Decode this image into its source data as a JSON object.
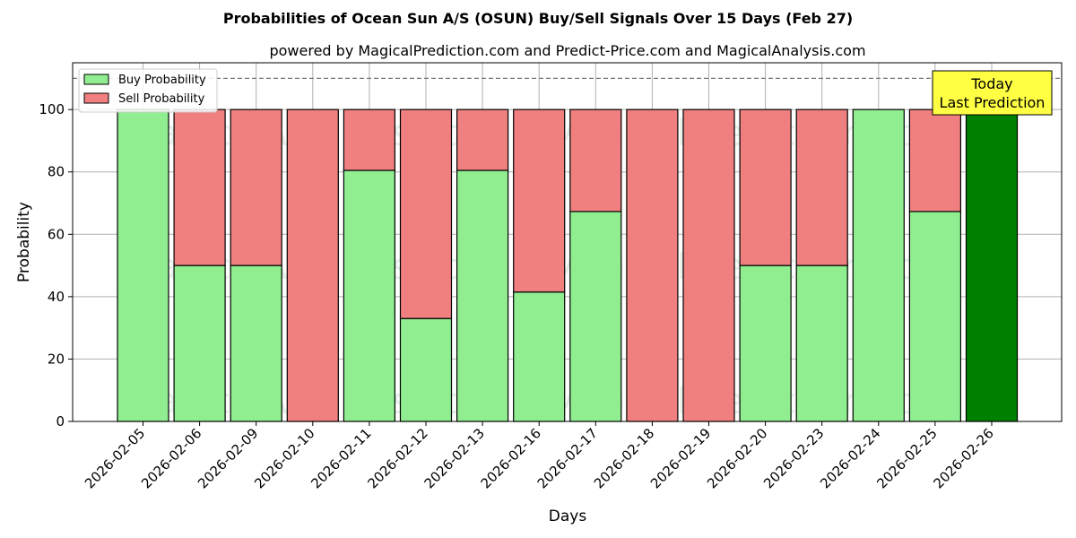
{
  "chart_data": {
    "type": "bar",
    "stacked": true,
    "title": "Probabilities of Ocean Sun A/S (OSUN) Buy/Sell Signals Over 15 Days (Feb 27)",
    "subtitle": "powered by MagicalPrediction.com and Predict-Price.com and MagicalAnalysis.com",
    "xlabel": "Days",
    "ylabel": "Probability",
    "ylim": [
      0,
      115
    ],
    "yticks": [
      0,
      20,
      40,
      60,
      80,
      100
    ],
    "grid": true,
    "legend_position": "top-left",
    "reference_line": 110,
    "categories": [
      "2026-02-05",
      "2026-02-06",
      "2026-02-09",
      "2026-02-10",
      "2026-02-11",
      "2026-02-12",
      "2026-02-13",
      "2026-02-16",
      "2026-02-17",
      "2026-02-18",
      "2026-02-19",
      "2026-02-20",
      "2026-02-23",
      "2026-02-24",
      "2026-02-25",
      "2026-02-26"
    ],
    "series": [
      {
        "name": "Buy Probability",
        "color": "#90ee90",
        "values": [
          100,
          50,
          50,
          0,
          80.5,
          33,
          80.5,
          41.5,
          67.3,
          0,
          0,
          50,
          50,
          100,
          67.3,
          100
        ]
      },
      {
        "name": "Sell Probability",
        "color": "#f08080",
        "values": [
          0,
          50,
          50,
          100,
          19.5,
          67,
          19.5,
          58.5,
          32.7,
          100,
          100,
          50,
          50,
          0,
          32.7,
          0
        ]
      }
    ],
    "highlight": {
      "index": 15,
      "color": "#008000"
    },
    "annotation": {
      "line1": "Today",
      "line2": "Last Prediction",
      "color": "#ffff44"
    },
    "watermarks": [
      "MagicalAnalysis.com",
      "MagicalPrediction.com"
    ]
  }
}
